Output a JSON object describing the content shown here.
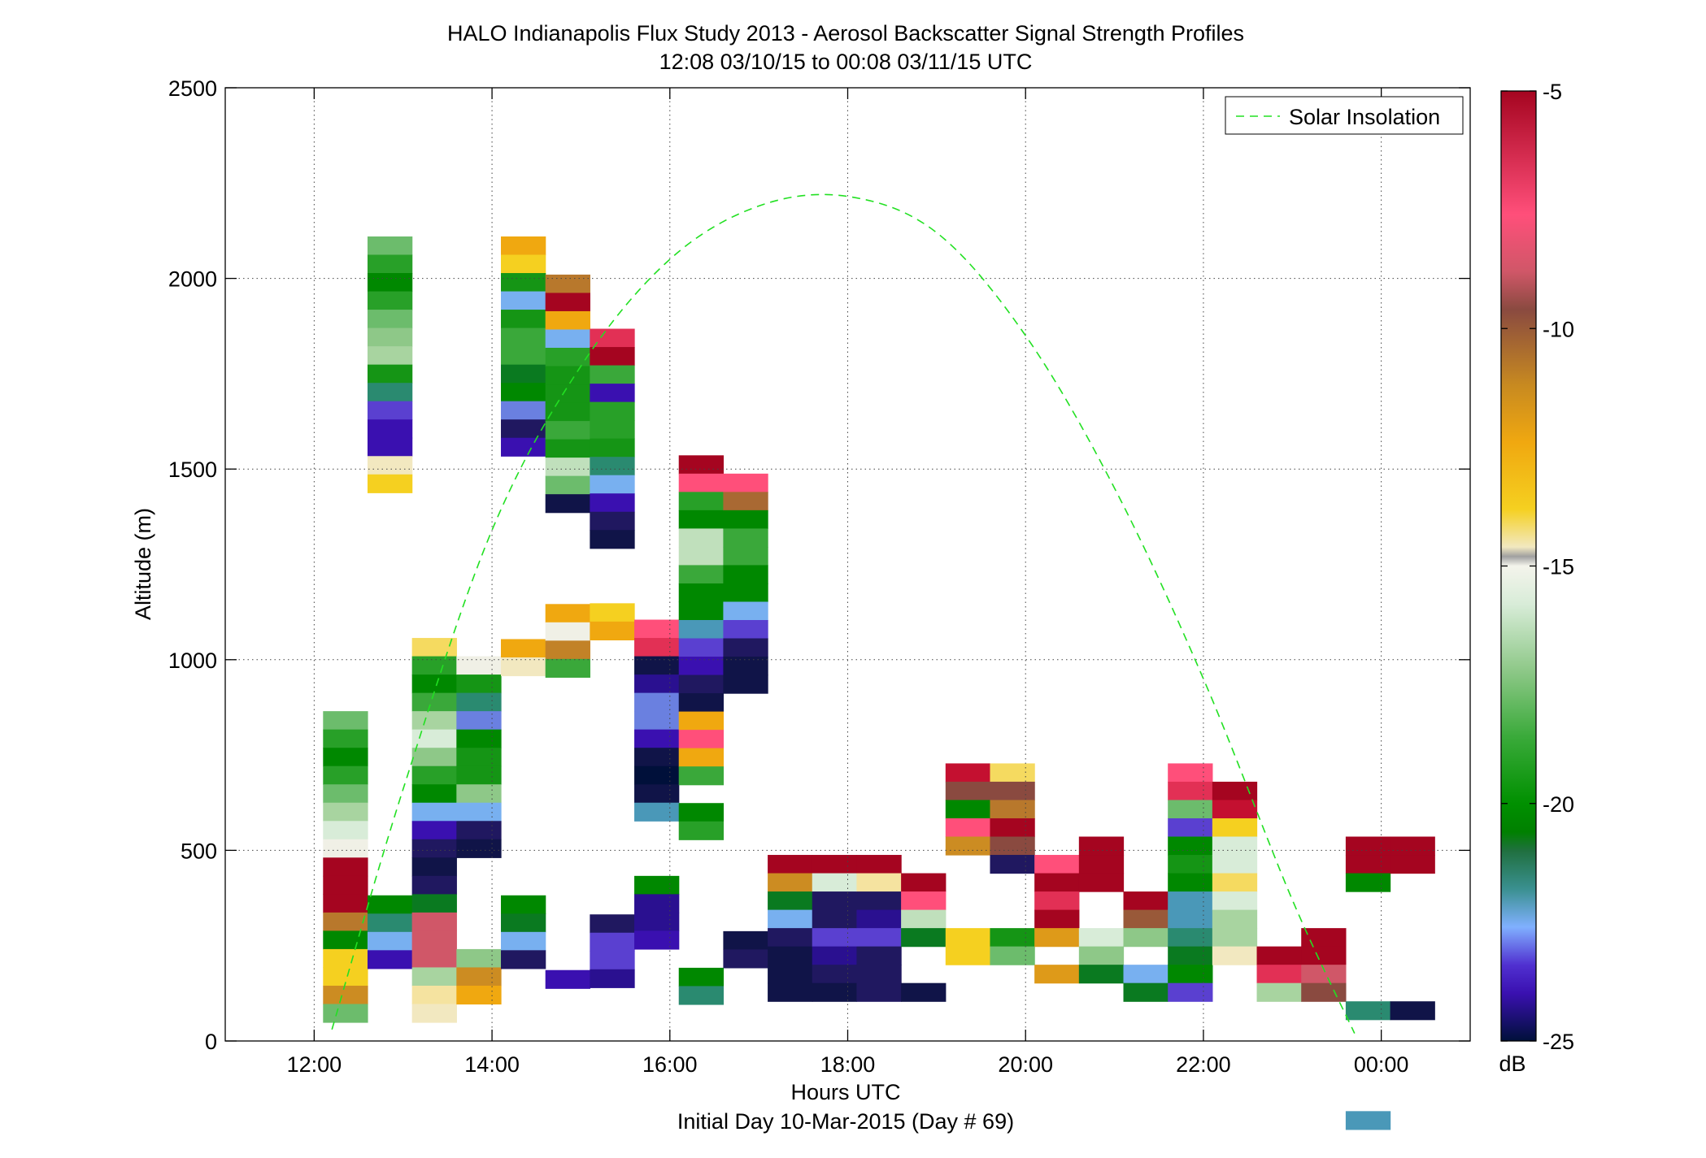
{
  "chart_data": {
    "type": "heatmap",
    "title": "HALO Indianapolis Flux Study 2013 - Aerosol Backscatter Signal Strength Profiles",
    "subtitle": "12:08 03/10/15 to 00:08 03/11/15  UTC",
    "xlabel": "Hours UTC",
    "xlabel2": "Initial Day 10-Mar-2015 (Day # 69)",
    "ylabel": "Altitude (m)",
    "xlim": [
      11.0,
      25.0
    ],
    "ylim": [
      0,
      2500
    ],
    "x_ticks": [
      12,
      14,
      16,
      18,
      20,
      22,
      24
    ],
    "x_tick_labels": [
      "12:00",
      "14:00",
      "16:00",
      "18:00",
      "20:00",
      "22:00",
      "00:00"
    ],
    "y_ticks": [
      0,
      500,
      1000,
      1500,
      2000,
      2500
    ],
    "y_tick_labels": [
      "0",
      "500",
      "1000",
      "1500",
      "2000",
      "2500"
    ],
    "grid": true,
    "legend": {
      "placement": "top-right",
      "entries": [
        "Solar Insolation"
      ]
    },
    "colorbar": {
      "label": "dB",
      "range": [
        -25,
        -5
      ],
      "ticks": [
        -5,
        -10,
        -15,
        -20,
        -25
      ],
      "tick_labels": [
        "-5",
        "-10",
        "-15",
        "-20",
        "-25"
      ]
    },
    "cell_width_hours": 0.5,
    "cell_height_m": 48,
    "columns": [
      {
        "time": 12.35,
        "top": 865,
        "values": [
          -17.5,
          -18.5,
          -19.5,
          -18.5,
          -17.5,
          -16.5,
          -15.5,
          -15,
          -5,
          -5,
          -5,
          -10,
          -19.5,
          -13,
          -13,
          -11,
          -17.5
        ]
      },
      {
        "time": 12.85,
        "top": 2110,
        "values": [
          -17.5,
          -18.5,
          -19.5,
          -18.5,
          -17.5,
          -17,
          -16.5,
          -19,
          -20.5,
          -22.5,
          -23,
          -23,
          -14.5,
          -13,
          null,
          null,
          null,
          null,
          null,
          null,
          null,
          null,
          null,
          null,
          null,
          null,
          null,
          null,
          null,
          null,
          null,
          null,
          null,
          null,
          null,
          null,
          -19.5,
          -20.5,
          -21.5,
          -23
        ]
      },
      {
        "time": 13.35,
        "top": 1057,
        "values": [
          -13.5,
          -18.5,
          -19.5,
          -18,
          -16.5,
          -15.5,
          -17,
          -18.5,
          -19.5,
          -21.5,
          -23,
          -24,
          -24.5,
          -24,
          -20,
          -7.5,
          -7.5,
          -7.5,
          -16.5,
          -14,
          -14.5
        ]
      },
      {
        "time": 13.85,
        "top": 1009,
        "values": [
          -15,
          -19,
          -20.5,
          -22,
          -19.5,
          -19,
          -19,
          -17,
          -21.5,
          -24,
          -24.5,
          null,
          null,
          null,
          null,
          null,
          -17,
          -11,
          -12
        ]
      },
      {
        "time": 14.35,
        "top": 2110,
        "values": [
          -12,
          -13,
          -19,
          -21.5,
          -19,
          -18,
          -18,
          -20,
          -19.5,
          -22,
          -24,
          -23,
          null,
          null,
          null,
          null,
          null,
          null,
          null,
          null,
          null,
          null,
          -12,
          -14.5,
          null,
          null,
          null,
          null,
          null,
          null,
          null,
          null,
          null,
          null,
          null,
          null,
          -19.5,
          -20,
          -21.5,
          -24
        ]
      },
      {
        "time": 14.85,
        "top": 2010,
        "values": [
          -10,
          -5,
          -12,
          -21.5,
          -18.5,
          -19,
          -19,
          -19,
          -18,
          -19,
          -16,
          -17.5,
          -24.5,
          null,
          null,
          null,
          null,
          null,
          -12,
          -15,
          -10.5,
          -18,
          null,
          null,
          null,
          null,
          null,
          null,
          null,
          null,
          null,
          null,
          null,
          null,
          null,
          null,
          null,
          null,
          -23
        ]
      },
      {
        "time": 15.35,
        "top": 1868,
        "values": [
          -6.5,
          -5,
          -18,
          -23,
          -18.5,
          -18.5,
          -19,
          -20.5,
          -21.5,
          -23,
          -24,
          -24.5,
          null,
          null,
          null,
          -13,
          -12,
          null,
          null,
          null,
          null,
          null,
          null,
          null,
          null,
          null,
          null,
          null,
          null,
          null,
          null,
          null,
          -24,
          -22.5,
          -22.5,
          -23.5
        ]
      },
      {
        "time": 15.85,
        "top": 1105,
        "values": [
          -7,
          -6.5,
          -24.5,
          -23.5,
          -22,
          -22,
          -23,
          -24.5,
          -25,
          -24.5,
          -21,
          null,
          null,
          null,
          -19.5,
          -23.5,
          -23.5,
          -23
        ]
      },
      {
        "time": 16.35,
        "top": 1536,
        "values": [
          -5,
          -7,
          -18.5,
          -19.5,
          -16,
          -16,
          -18,
          -19.5,
          -19.5,
          -21,
          -22.5,
          -23,
          -24,
          -24.5,
          -12,
          -7,
          -12,
          -18,
          null,
          -19.5,
          -18.5,
          null,
          null,
          null,
          null,
          null,
          null,
          null,
          -19.5,
          -20.5
        ]
      },
      {
        "time": 16.85,
        "top": 1488,
        "values": [
          -7,
          -9.5,
          -19.5,
          -18,
          -18,
          -19.5,
          -19.5,
          -21.5,
          -22.5,
          -24,
          -24.5,
          -24.5,
          null,
          null,
          null,
          null,
          null,
          null,
          null,
          null,
          null,
          null,
          null,
          null,
          null,
          -24.5,
          -24
        ]
      },
      {
        "time": 17.35,
        "top": 488,
        "values": [
          -5,
          -11,
          -20,
          -21.5,
          -24,
          -24.5,
          -24.5,
          -24.5
        ]
      },
      {
        "time": 17.85,
        "top": 488,
        "values": [
          -5,
          -15.5,
          -24,
          -24,
          -22.5,
          -23.5,
          -24,
          -24.5
        ]
      },
      {
        "time": 18.35,
        "top": 488,
        "values": [
          -5,
          -14,
          -24,
          -23.5,
          -22.5,
          -24,
          -24,
          -24
        ]
      },
      {
        "time": 18.85,
        "top": 440,
        "values": [
          -5,
          -7,
          -16,
          -20,
          null,
          null,
          -24.5
        ]
      },
      {
        "time": 19.35,
        "top": 728,
        "values": [
          -6,
          -8.5,
          -19.5,
          -7,
          -11,
          null,
          null,
          null,
          null,
          -13,
          -13
        ]
      },
      {
        "time": 19.85,
        "top": 728,
        "values": [
          -13.5,
          -8.5,
          -10,
          -5,
          -8.5,
          -24,
          null,
          null,
          null,
          -19,
          -17.5
        ]
      },
      {
        "time": 20.35,
        "top": 488,
        "values": [
          -7,
          -5,
          -6.5,
          -5,
          -11.5,
          null,
          -11.5
        ]
      },
      {
        "time": 20.85,
        "top": 536,
        "values": [
          -5,
          -5,
          -5,
          null,
          null,
          -15.5,
          -17,
          -20
        ]
      },
      {
        "time": 21.35,
        "top": 392,
        "values": [
          -5,
          -9,
          -17,
          null,
          -21.5,
          -20
        ]
      },
      {
        "time": 21.85,
        "top": 728,
        "values": [
          -7,
          -6.5,
          -17.5,
          -22.5,
          -19.5,
          -19,
          -19.5,
          -21,
          -21,
          -20.5,
          -20,
          -19.5,
          -22.5
        ]
      },
      {
        "time": 22.35,
        "top": 680,
        "values": [
          -5,
          -6,
          -13,
          -15.5,
          -15.5,
          -13.5,
          -15.5,
          -16.5,
          -16.5,
          -14.5
        ]
      },
      {
        "time": 22.85,
        "top": 248,
        "values": [
          -5,
          -6.5,
          -16.5
        ]
      },
      {
        "time": 23.35,
        "top": 296,
        "values": [
          -5,
          -5,
          -7.5,
          -8.5
        ]
      },
      {
        "time": 23.85,
        "top": 536,
        "values": [
          -5,
          -5,
          -19.5,
          null,
          null,
          null,
          null,
          null,
          null,
          -20.5,
          null,
          null,
          null,
          null,
          null,
          -21
        ]
      },
      {
        "time": 24.35,
        "top": 536,
        "values": [
          -5,
          -5,
          null,
          null,
          null,
          null,
          null,
          null,
          null,
          -24.5
        ]
      }
    ],
    "solar_insolation_curve": {
      "name": "Solar Insolation",
      "x": [
        12.2,
        13.0,
        14.0,
        15.0,
        16.0,
        17.0,
        18.0,
        19.0,
        20.0,
        21.0,
        22.0,
        23.0,
        23.7
      ],
      "y": [
        30,
        660,
        1340,
        1770,
        2050,
        2190,
        2215,
        2120,
        1850,
        1450,
        950,
        370,
        20
      ]
    }
  }
}
